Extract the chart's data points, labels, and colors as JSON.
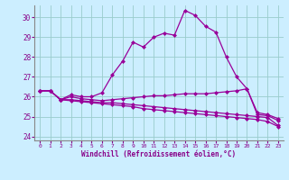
{
  "xlabel": "Windchill (Refroidissement éolien,°C)",
  "xlim": [
    -0.5,
    23.5
  ],
  "ylim": [
    23.8,
    30.6
  ],
  "yticks": [
    24,
    25,
    26,
    27,
    28,
    29,
    30
  ],
  "xticks": [
    0,
    1,
    2,
    3,
    4,
    5,
    6,
    7,
    8,
    9,
    10,
    11,
    12,
    13,
    14,
    15,
    16,
    17,
    18,
    19,
    20,
    21,
    22,
    23
  ],
  "background_color": "#cceeff",
  "grid_color": "#99cccc",
  "line_color": "#990099",
  "series": [
    [
      26.3,
      26.3,
      25.85,
      26.1,
      26.0,
      26.0,
      26.2,
      27.1,
      27.8,
      28.75,
      28.5,
      29.0,
      29.2,
      29.1,
      30.35,
      30.1,
      29.55,
      29.25,
      28.0,
      27.0,
      26.4,
      25.1,
      25.05,
      24.8
    ],
    [
      26.3,
      26.3,
      25.85,
      26.0,
      25.9,
      25.85,
      25.8,
      25.85,
      25.9,
      25.95,
      26.0,
      26.05,
      26.05,
      26.1,
      26.15,
      26.15,
      26.15,
      26.2,
      26.25,
      26.3,
      26.4,
      25.2,
      25.1,
      24.9
    ],
    [
      26.3,
      26.3,
      25.85,
      25.85,
      25.8,
      25.75,
      25.7,
      25.7,
      25.65,
      25.6,
      25.55,
      25.5,
      25.45,
      25.4,
      25.35,
      25.3,
      25.25,
      25.2,
      25.15,
      25.1,
      25.05,
      25.0,
      24.95,
      24.55
    ],
    [
      26.3,
      26.3,
      25.85,
      25.8,
      25.75,
      25.7,
      25.65,
      25.6,
      25.55,
      25.5,
      25.4,
      25.35,
      25.3,
      25.25,
      25.2,
      25.15,
      25.1,
      25.05,
      25.0,
      24.95,
      24.9,
      24.85,
      24.75,
      24.5
    ]
  ]
}
